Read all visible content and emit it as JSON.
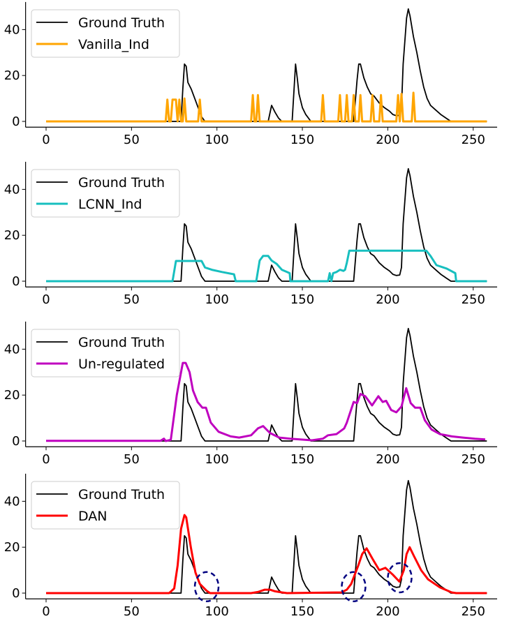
{
  "chart_data": [
    {
      "type": "line",
      "xlim": [
        -12,
        264
      ],
      "ylim": [
        -2.5,
        52
      ],
      "xticks": [
        0,
        50,
        100,
        150,
        200,
        250
      ],
      "yticks": [
        0,
        20,
        40
      ],
      "legend_placement": "upper-left",
      "grid": false,
      "series": [
        {
          "name": "Ground Truth",
          "color": "#000000",
          "ref": "ground_truth"
        },
        {
          "name": "Vanilla_Ind",
          "color": "#FFA500",
          "points": [
            [
              0,
              0
            ],
            [
              70,
              0
            ],
            [
              71,
              9.5
            ],
            [
              72,
              0
            ],
            [
              73,
              0
            ],
            [
              74,
              9.5
            ],
            [
              76,
              9.5
            ],
            [
              77,
              0
            ],
            [
              78,
              9.5
            ],
            [
              79,
              0
            ],
            [
              80,
              0
            ],
            [
              81,
              10
            ],
            [
              82,
              0
            ],
            [
              89,
              0
            ],
            [
              90,
              9.5
            ],
            [
              91,
              0
            ],
            [
              120,
              0
            ],
            [
              121,
              11.5
            ],
            [
              122,
              0
            ],
            [
              123,
              0
            ],
            [
              124,
              11.5
            ],
            [
              125,
              0
            ],
            [
              161,
              0
            ],
            [
              162,
              11.5
            ],
            [
              163,
              0
            ],
            [
              171,
              0
            ],
            [
              172,
              11.5
            ],
            [
              173,
              0
            ],
            [
              175,
              0
            ],
            [
              176,
              11.5
            ],
            [
              177,
              0
            ],
            [
              179,
              0
            ],
            [
              180,
              11.5
            ],
            [
              181,
              0
            ],
            [
              183,
              0
            ],
            [
              184,
              11.5
            ],
            [
              185,
              0
            ],
            [
              190,
              0
            ],
            [
              191,
              11.5
            ],
            [
              192,
              0
            ],
            [
              195,
              0
            ],
            [
              196,
              11.5
            ],
            [
              197,
              0
            ],
            [
              205,
              0
            ],
            [
              206,
              11.5
            ],
            [
              207,
              0
            ],
            [
              208,
              12
            ],
            [
              209,
              0
            ],
            [
              214,
              0
            ],
            [
              215,
              12.5
            ],
            [
              216,
              0
            ],
            [
              258,
              0
            ]
          ]
        }
      ]
    },
    {
      "type": "line",
      "xlim": [
        -12,
        264
      ],
      "ylim": [
        -2.5,
        52
      ],
      "xticks": [
        0,
        50,
        100,
        150,
        200,
        250
      ],
      "yticks": [
        0,
        20,
        40
      ],
      "legend_placement": "upper-left",
      "grid": false,
      "series": [
        {
          "name": "Ground Truth",
          "color": "#000000",
          "ref": "ground_truth"
        },
        {
          "name": "LCNN_Ind",
          "color": "#17BFBF",
          "points": [
            [
              0,
              0
            ],
            [
              74,
              0
            ],
            [
              76,
              8.8
            ],
            [
              91,
              8.8
            ],
            [
              93,
              6
            ],
            [
              97,
              5
            ],
            [
              103,
              4
            ],
            [
              110,
              3
            ],
            [
              111,
              0
            ],
            [
              123,
              0
            ],
            [
              125,
              9
            ],
            [
              127,
              11
            ],
            [
              130,
              11
            ],
            [
              132,
              9
            ],
            [
              135,
              7.5
            ],
            [
              138,
              5
            ],
            [
              141,
              4
            ],
            [
              142.6,
              3.5
            ],
            [
              143,
              0
            ],
            [
              165,
              0
            ],
            [
              166,
              3.5
            ],
            [
              167,
              0
            ],
            [
              168,
              3.5
            ],
            [
              170,
              4
            ],
            [
              172,
              5
            ],
            [
              174,
              4.5
            ],
            [
              175,
              5
            ],
            [
              176,
              8
            ],
            [
              177.5,
              13.3
            ],
            [
              222.5,
              13.3
            ],
            [
              225,
              11
            ],
            [
              228.5,
              7
            ],
            [
              234.5,
              5.5
            ],
            [
              239.5,
              3.5
            ],
            [
              240,
              0
            ],
            [
              258,
              0
            ]
          ]
        }
      ]
    },
    {
      "type": "line",
      "xlim": [
        -12,
        264
      ],
      "ylim": [
        -2.5,
        52
      ],
      "xticks": [
        0,
        50,
        100,
        150,
        200,
        250
      ],
      "yticks": [
        0,
        20,
        40
      ],
      "legend_placement": "upper-left",
      "grid": false,
      "series": [
        {
          "name": "Ground Truth",
          "color": "#000000",
          "ref": "ground_truth"
        },
        {
          "name": "Un-regulated",
          "color": "#BF00BF",
          "points": [
            [
              0,
              0.1
            ],
            [
              67,
              0.1
            ],
            [
              69,
              1
            ],
            [
              70,
              0
            ],
            [
              73,
              0.5
            ],
            [
              76.5,
              20
            ],
            [
              80,
              34
            ],
            [
              81.7,
              34
            ],
            [
              84,
              30
            ],
            [
              86,
              22
            ],
            [
              88.7,
              17
            ],
            [
              91.5,
              14.5
            ],
            [
              93.6,
              14.5
            ],
            [
              96.4,
              8
            ],
            [
              101,
              4
            ],
            [
              108,
              2
            ],
            [
              113,
              1.5
            ],
            [
              120,
              2.5
            ],
            [
              124,
              5.5
            ],
            [
              127,
              6.5
            ],
            [
              131,
              3.5
            ],
            [
              136.5,
              1.5
            ],
            [
              143,
              1
            ],
            [
              148.7,
              0.7
            ],
            [
              155.6,
              0.3
            ],
            [
              162,
              1
            ],
            [
              165,
              2.5
            ],
            [
              170,
              3
            ],
            [
              174.5,
              5.5
            ],
            [
              176,
              8
            ],
            [
              180,
              17
            ],
            [
              182,
              16.5
            ],
            [
              184,
              20.5
            ],
            [
              186.8,
              19.5
            ],
            [
              190.8,
              15.5
            ],
            [
              194.5,
              19.5
            ],
            [
              197,
              17
            ],
            [
              199,
              17.5
            ],
            [
              202,
              13.5
            ],
            [
              205,
              12.5
            ],
            [
              208,
              15
            ],
            [
              210.8,
              23
            ],
            [
              213.4,
              16.5
            ],
            [
              216,
              14.5
            ],
            [
              219,
              14.5
            ],
            [
              221.7,
              9
            ],
            [
              225.6,
              5
            ],
            [
              230.5,
              3
            ],
            [
              237.4,
              2
            ],
            [
              244,
              1.5
            ],
            [
              251,
              1
            ],
            [
              257,
              0.7
            ]
          ]
        }
      ]
    },
    {
      "type": "line",
      "xlim": [
        -12,
        264
      ],
      "ylim": [
        -2.5,
        52
      ],
      "xticks": [
        0,
        50,
        100,
        150,
        200,
        250
      ],
      "yticks": [
        0,
        20,
        40
      ],
      "legend_placement": "upper-left",
      "grid": false,
      "series": [
        {
          "name": "Ground Truth",
          "color": "#000000",
          "ref": "ground_truth"
        },
        {
          "name": "DAN",
          "color": "#FF0000",
          "points": [
            [
              0,
              0
            ],
            [
              72,
              0
            ],
            [
              75,
              2
            ],
            [
              77,
              12
            ],
            [
              79,
              28
            ],
            [
              81,
              34
            ],
            [
              82,
              33
            ],
            [
              84.7,
              20
            ],
            [
              87.4,
              9
            ],
            [
              90,
              4
            ],
            [
              94,
              1
            ],
            [
              96,
              0
            ],
            [
              120,
              0
            ],
            [
              124,
              0.5
            ],
            [
              128,
              1.5
            ],
            [
              131,
              1.5
            ],
            [
              134,
              0.8
            ],
            [
              138,
              0.3
            ],
            [
              141,
              0
            ],
            [
              173,
              0.3
            ],
            [
              176,
              1.5
            ],
            [
              178.6,
              4
            ],
            [
              182.7,
              12
            ],
            [
              185,
              17
            ],
            [
              187.6,
              19.5
            ],
            [
              191,
              15
            ],
            [
              195,
              10
            ],
            [
              198.6,
              11
            ],
            [
              203,
              8
            ],
            [
              206.8,
              5
            ],
            [
              209.4,
              10
            ],
            [
              211,
              17
            ],
            [
              212.8,
              20
            ],
            [
              215.4,
              16
            ],
            [
              219.5,
              10
            ],
            [
              223.6,
              6
            ],
            [
              230.5,
              2.5
            ],
            [
              237.4,
              0.3
            ],
            [
              240,
              0
            ],
            [
              258,
              0
            ]
          ]
        }
      ],
      "annotations": [
        {
          "type": "dashed-circle",
          "color": "#000080",
          "x": 94,
          "y": 2.8
        },
        {
          "type": "dashed-circle",
          "color": "#000080",
          "x": 180,
          "y": 2.8
        },
        {
          "type": "dashed-circle",
          "color": "#000080",
          "x": 207,
          "y": 6.7
        }
      ]
    }
  ],
  "ground_truth": [
    [
      0,
      0
    ],
    [
      79,
      0
    ],
    [
      80,
      14
    ],
    [
      81,
      25
    ],
    [
      82,
      24
    ],
    [
      83,
      17
    ],
    [
      85,
      14
    ],
    [
      87,
      10
    ],
    [
      89,
      6
    ],
    [
      91,
      2
    ],
    [
      93,
      0
    ],
    [
      130,
      0
    ],
    [
      132,
      7
    ],
    [
      134,
      4
    ],
    [
      136,
      1.5
    ],
    [
      138,
      0
    ],
    [
      144,
      0
    ],
    [
      146,
      25
    ],
    [
      147,
      19
    ],
    [
      148,
      12
    ],
    [
      150,
      6
    ],
    [
      152,
      3
    ],
    [
      155,
      0
    ],
    [
      180,
      0
    ],
    [
      182,
      18
    ],
    [
      183,
      25
    ],
    [
      184,
      25
    ],
    [
      186,
      19
    ],
    [
      188,
      15
    ],
    [
      190,
      12
    ],
    [
      192,
      11
    ],
    [
      195,
      8
    ],
    [
      198,
      6
    ],
    [
      201,
      4.5
    ],
    [
      203,
      3
    ],
    [
      205,
      2.5
    ],
    [
      207,
      2.7
    ],
    [
      208,
      6
    ],
    [
      209,
      25
    ],
    [
      211,
      45
    ],
    [
      212,
      49
    ],
    [
      213,
      46
    ],
    [
      215,
      37
    ],
    [
      217,
      30
    ],
    [
      219,
      22
    ],
    [
      221,
      15
    ],
    [
      223,
      10
    ],
    [
      225,
      7
    ],
    [
      228,
      5
    ],
    [
      231,
      3
    ],
    [
      234,
      1.5
    ],
    [
      237,
      0
    ],
    [
      258,
      0
    ]
  ]
}
